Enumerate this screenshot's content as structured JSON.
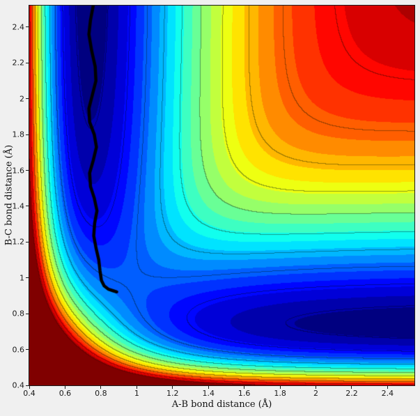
{
  "figure": {
    "background_color": "#f0f0f0",
    "plot_border_color": "#1a1a1a",
    "tick_color": "#1a1a1a"
  },
  "chart_data": {
    "type": "heatmap",
    "subtype": "filled_contour_with_contour_lines",
    "title": "",
    "description": "Potential energy surface for collinear A-B-C reaction with minimum-energy reaction path drawn as a thick black curve along the entrance valley",
    "xlabel": "A-B bond distance (Å)",
    "ylabel": "B-C bond distance (Å)",
    "xlim": [
      0.4,
      2.55
    ],
    "ylim": [
      0.4,
      2.52
    ],
    "x_ticks": {
      "values": [
        0.4,
        0.6,
        0.8,
        1.0,
        1.2,
        1.4,
        1.6,
        1.8,
        2.0,
        2.2,
        2.4
      ],
      "labels": [
        "0.4",
        "0.6",
        "0.8",
        "1",
        "1.2",
        "1.4",
        "1.6",
        "1.8",
        "2",
        "2.2",
        "2.4"
      ]
    },
    "y_ticks": {
      "values": [
        0.4,
        0.6,
        0.8,
        1.0,
        1.2,
        1.4,
        1.6,
        1.8,
        2.0,
        2.2,
        2.4
      ],
      "labels": [
        "0.4",
        "0.6",
        "0.8",
        "1",
        "1.2",
        "1.4",
        "1.6",
        "1.8",
        "2",
        "2.2",
        "2.4"
      ]
    },
    "colormap": "jet",
    "grid": false,
    "colorbar": false,
    "legend": null,
    "n_fill_levels": 24,
    "line_levels": [
      -105,
      -95,
      -85,
      -75,
      -65,
      -55,
      -45,
      -35,
      -25,
      -15,
      -5
    ],
    "line_darken": 0.62,
    "potential": {
      "model": "LEPS",
      "geometry": "collinear A-B-C, rAC = rAB + rBC",
      "D": 109.46,
      "alpha": 1.942,
      "re": 0.742,
      "sato": 0.0,
      "clip": [
        -110,
        0
      ]
    },
    "reaction_path": {
      "label": "minimum-energy path",
      "color": "#000000",
      "width": 4.5,
      "points": [
        [
          0.757,
          2.52
        ],
        [
          0.742,
          2.44
        ],
        [
          0.733,
          2.36
        ],
        [
          0.748,
          2.27
        ],
        [
          0.768,
          2.18
        ],
        [
          0.772,
          2.1
        ],
        [
          0.752,
          2.02
        ],
        [
          0.733,
          1.945
        ],
        [
          0.737,
          1.87
        ],
        [
          0.763,
          1.8
        ],
        [
          0.775,
          1.73
        ],
        [
          0.757,
          1.655
        ],
        [
          0.737,
          1.585
        ],
        [
          0.742,
          1.51
        ],
        [
          0.763,
          1.445
        ],
        [
          0.778,
          1.375
        ],
        [
          0.765,
          1.305
        ],
        [
          0.76,
          1.235
        ],
        [
          0.773,
          1.165
        ],
        [
          0.788,
          1.1
        ],
        [
          0.795,
          1.04
        ],
        [
          0.803,
          0.985
        ],
        [
          0.818,
          0.955
        ],
        [
          0.843,
          0.936
        ],
        [
          0.868,
          0.928
        ],
        [
          0.888,
          0.922
        ]
      ]
    }
  }
}
